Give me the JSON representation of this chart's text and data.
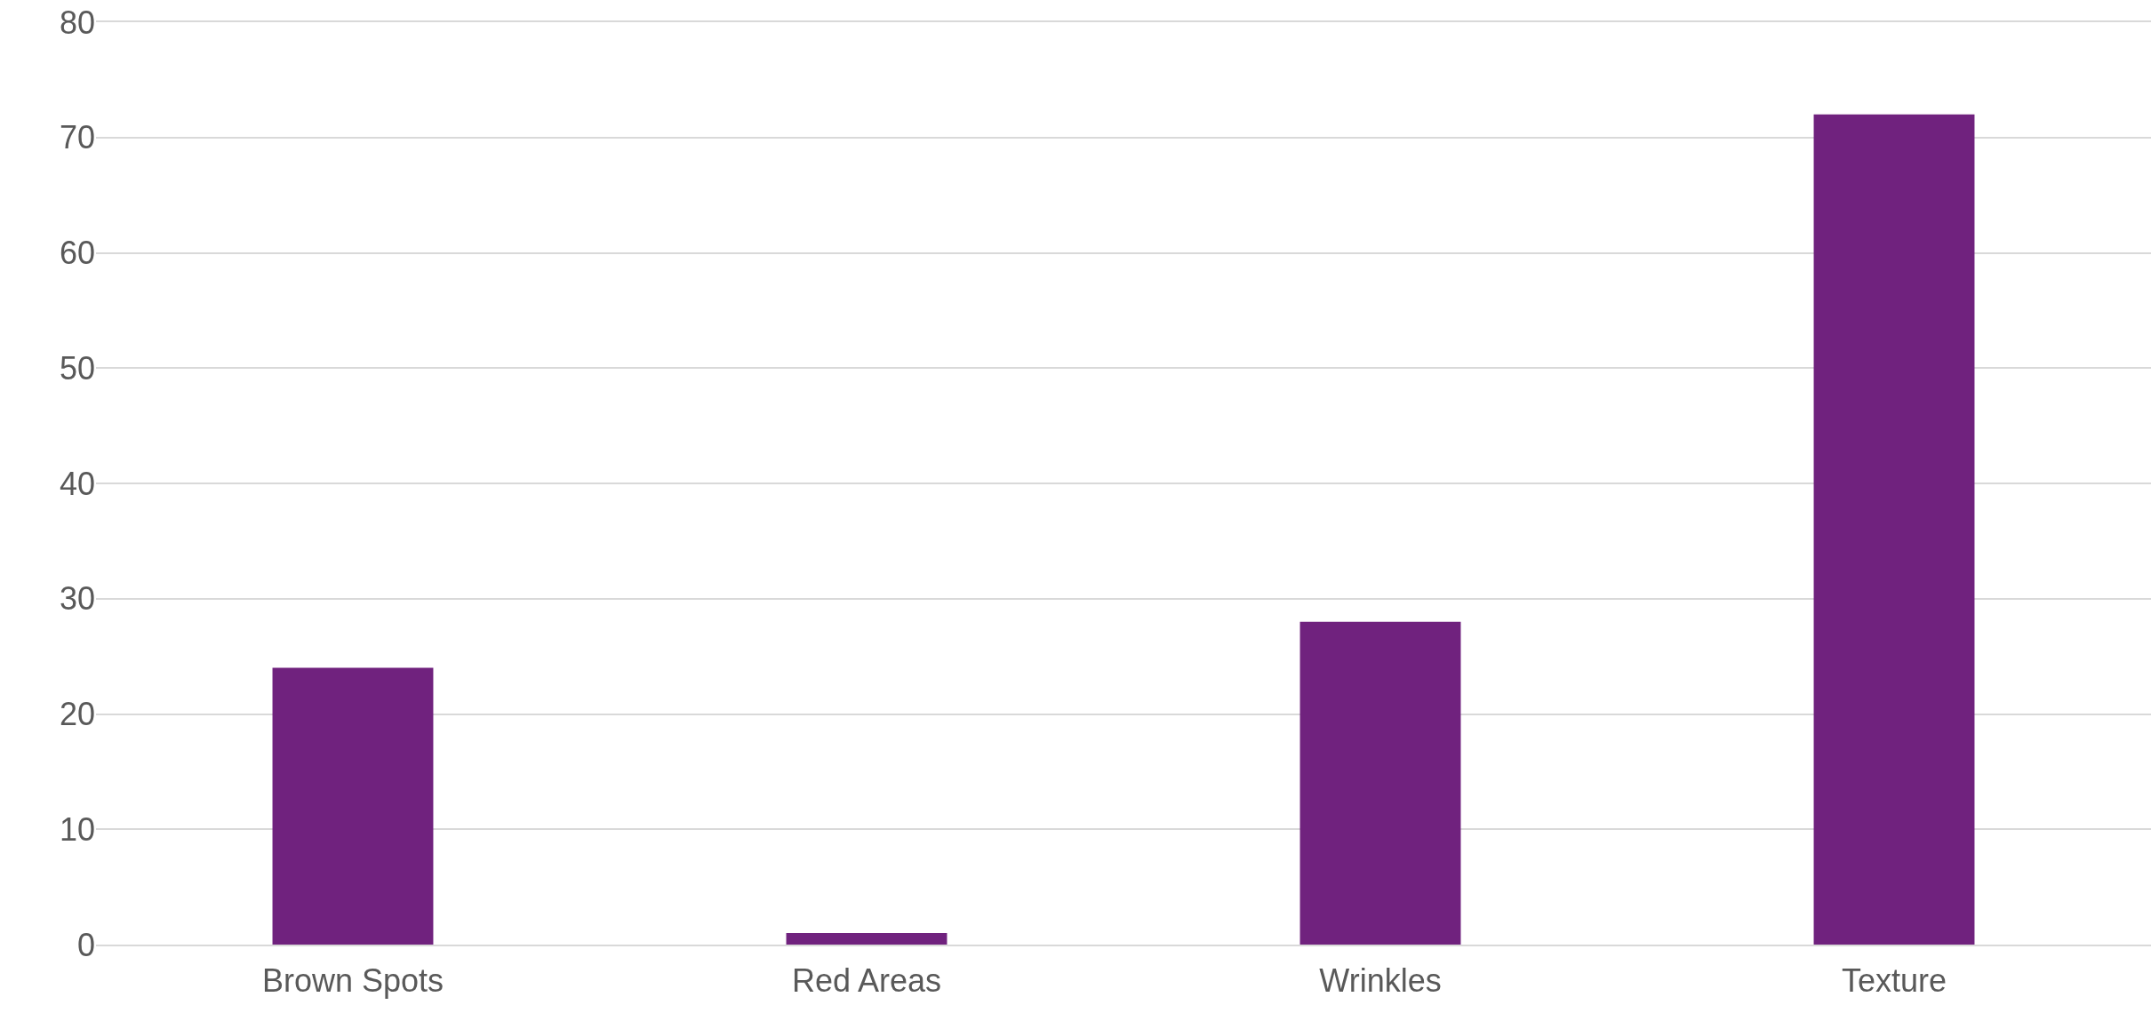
{
  "chart_data": {
    "type": "bar",
    "categories": [
      "Brown Spots",
      "Red Areas",
      "Wrinkles",
      "Texture"
    ],
    "values": [
      24,
      1,
      28,
      72
    ],
    "color": "#70227e",
    "ylim": [
      0,
      80
    ],
    "yticks": [
      0,
      10,
      20,
      30,
      40,
      50,
      60,
      70,
      80
    ],
    "grid": "y"
  }
}
